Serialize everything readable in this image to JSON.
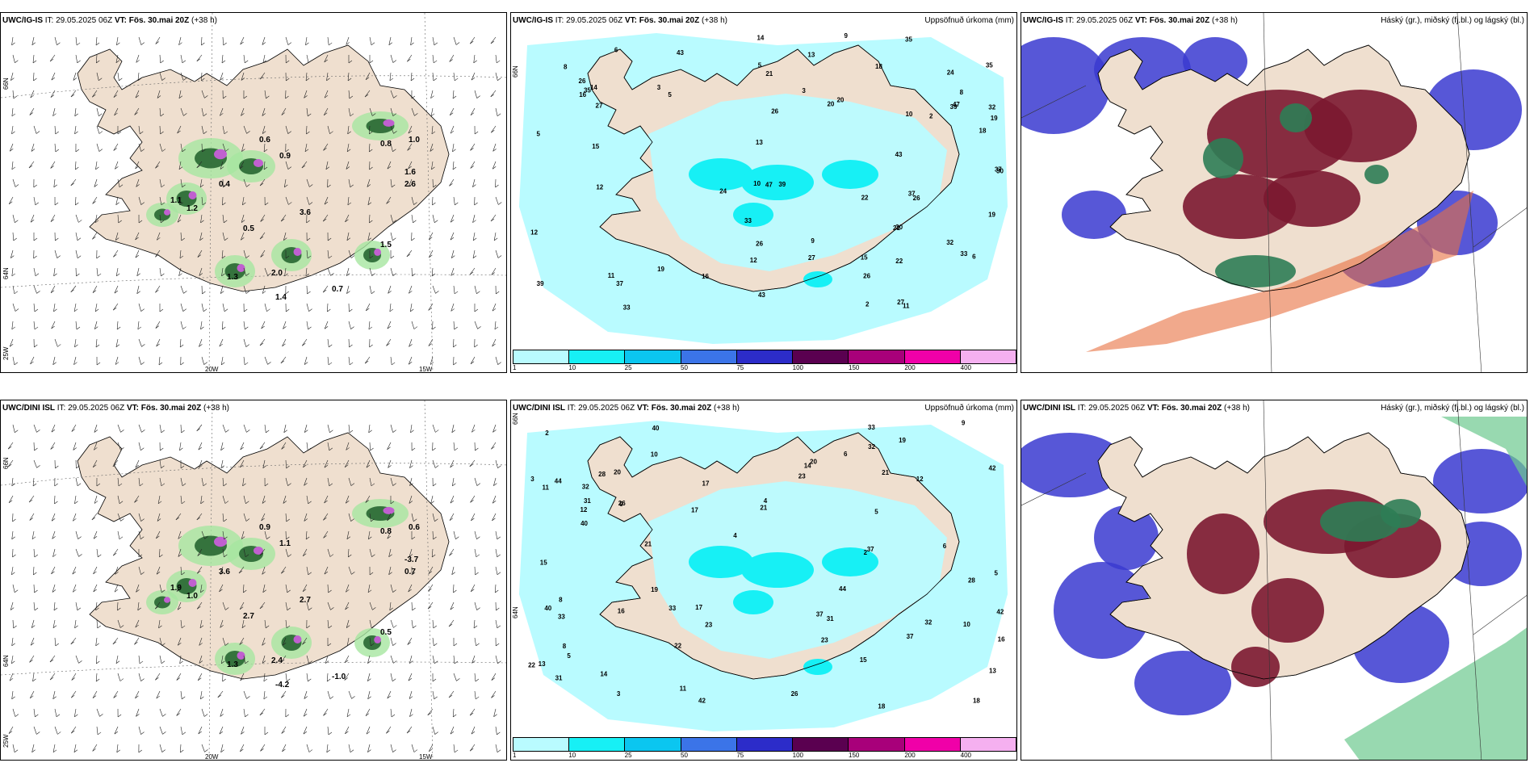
{
  "panels": [
    {
      "id": "p1",
      "model": "UWC/IG-IS",
      "it_label": "IT:",
      "it": "29.05.2025 06Z",
      "vt_label": "VT:",
      "vt": "Fös. 30.mai 20Z",
      "lead": "(+38 h)",
      "right_title": "",
      "type": "wind"
    },
    {
      "id": "p2",
      "model": "UWC/IG-IS",
      "it_label": "IT:",
      "it": "29.05.2025 06Z",
      "vt_label": "VT:",
      "vt": "Fös. 30.mai 20Z",
      "lead": "(+38 h)",
      "right_title": "Uppsöfnuð úrkoma (mm)",
      "type": "precip"
    },
    {
      "id": "p3",
      "model": "UWC/IG-IS",
      "it_label": "IT:",
      "it": "29.05.2025 06Z",
      "vt_label": "VT:",
      "vt": "Fös. 30.mai 20Z",
      "lead": "(+38 h)",
      "right_title": "Háský (gr.), miðský (fj.bl.) og lágský (bl.)",
      "type": "cloud"
    },
    {
      "id": "p4",
      "model": "UWC/DINI ISL",
      "it_label": "IT:",
      "it": "29.05.2025 06Z",
      "vt_label": "VT:",
      "vt": "Fös. 30.mai 20Z",
      "lead": "(+38 h)",
      "right_title": "",
      "type": "wind"
    },
    {
      "id": "p5",
      "model": "UWC/DINI ISL",
      "it_label": "IT:",
      "it": "29.05.2025 06Z",
      "vt_label": "VT:",
      "vt": "Fös. 30.mai 20Z",
      "lead": "(+38 h)",
      "right_title": "Uppsöfnuð úrkoma (mm)",
      "type": "precip"
    },
    {
      "id": "p6",
      "model": "UWC/DINI ISL",
      "it_label": "IT:",
      "it": "29.05.2025 06Z",
      "vt_label": "VT:",
      "vt": "Fös. 30.mai 20Z",
      "lead": "(+38 h)",
      "right_title": "Háský (gr.), miðský (fj.bl.) og lágský (bl.)",
      "type": "cloud"
    }
  ],
  "colorbar": {
    "labels": [
      "1",
      "10",
      "25",
      "50",
      "75",
      "100",
      "150",
      "200",
      "400"
    ],
    "colors": [
      "#b9fbff",
      "#17f0f5",
      "#0bc6f0",
      "#3b74e8",
      "#2c2cc9",
      "#5a0050",
      "#a8007a",
      "#f000a8",
      "#f5b0f0"
    ]
  },
  "grid_labels": {
    "w20": "20W",
    "w15": "15W",
    "w25": "25W",
    "n66": "66N",
    "n64": "64N"
  },
  "colors": {
    "land": "#efdfcf",
    "sea": "#ffffff",
    "precip_light": "#b9fbff",
    "precip_mid": "#17f0f5",
    "cloud_high": "#7b1830",
    "cloud_mid": "#2e7d55",
    "cloud_low": "#3a3ad0",
    "cloud_orange": "#e87040"
  },
  "precip_numbers_top": [
    "5",
    "12",
    "19",
    "26",
    "35",
    "43",
    "37",
    "39",
    "33",
    "27",
    "26",
    "32",
    "20",
    "30",
    "18",
    "22",
    "15",
    "10",
    "8",
    "6",
    "24",
    "16",
    "21",
    "47",
    "14",
    "11",
    "9",
    "13",
    "3",
    "2"
  ],
  "precip_numbers_bottom": [
    "5",
    "17",
    "21",
    "33",
    "37",
    "40",
    "32",
    "31",
    "42",
    "23",
    "44",
    "28",
    "26",
    "18",
    "16",
    "10",
    "15",
    "12",
    "8",
    "6",
    "13",
    "22",
    "20",
    "19",
    "11",
    "9",
    "14",
    "4",
    "3",
    "2"
  ],
  "wind_numbers_top": [
    "0.6",
    "0.9",
    "1.2",
    "1.1",
    "0.5",
    "0.8",
    "1.0",
    "0.4",
    "1.3",
    "2.0",
    "0.7",
    "1.6",
    "1.4",
    "1.5",
    "3.6",
    "2.6"
  ],
  "wind_numbers_bottom": [
    "0.9",
    "1.1",
    "1.0",
    "1.9",
    "2.7",
    "0.8",
    "0.6",
    "3.6",
    "1.3",
    "2.4",
    "-1.0",
    "-3.7",
    "-4.2",
    "0.5",
    "2.7",
    "0.7"
  ]
}
